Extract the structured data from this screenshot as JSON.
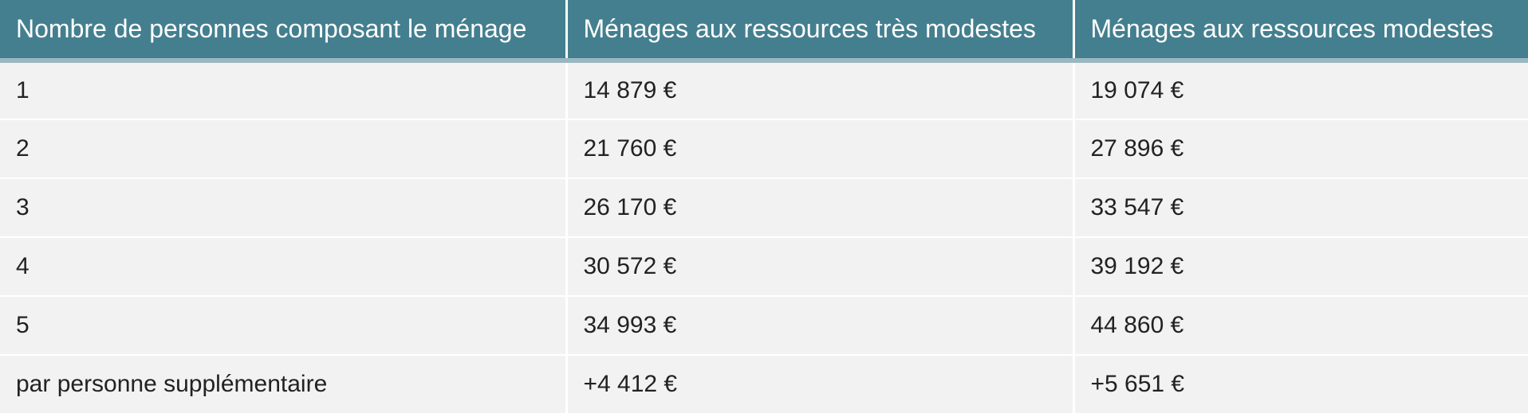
{
  "table": {
    "headers": [
      "Nombre de personnes composant le ménage",
      "Ménages aux ressources très modestes",
      "Ménages aux ressources modestes"
    ],
    "rows": [
      [
        "1",
        "14 879 €",
        "19 074 €"
      ],
      [
        "2",
        "21 760 €",
        "27 896 €"
      ],
      [
        "3",
        "26 170 €",
        "33 547 €"
      ],
      [
        "4",
        "30 572 €",
        "39 192 €"
      ],
      [
        "5",
        "34 993 €",
        "44 860 €"
      ],
      [
        "par personne supplémentaire",
        "+4 412 €",
        "+5 651 €"
      ]
    ]
  },
  "colors": {
    "header_bg": "#447f8f",
    "header_text": "#ffffff",
    "row_bg": "#f2f2f2"
  }
}
